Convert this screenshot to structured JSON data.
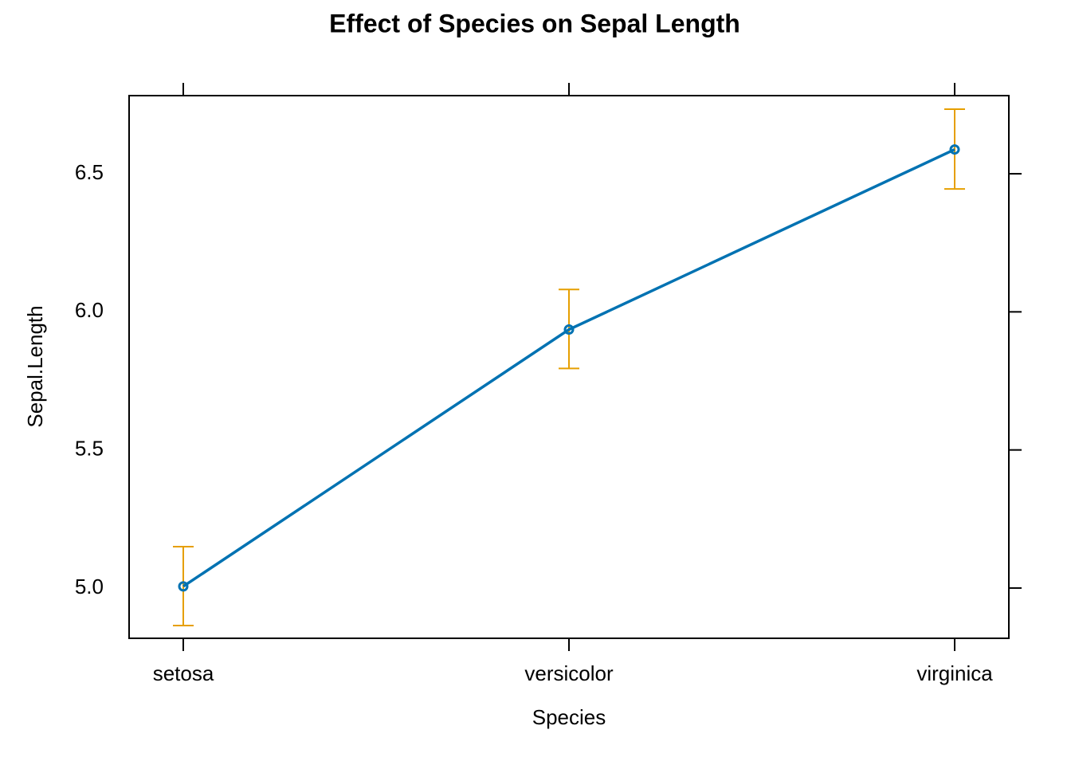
{
  "chart_data": {
    "type": "line",
    "title": "Effect of Species on Sepal Length",
    "x_label": "Species",
    "y_label": "Sepal.Length",
    "categories": [
      "setosa",
      "versicolor",
      "virginica"
    ],
    "series": [
      {
        "color": "#0072b2",
        "values": [
          5.006,
          5.936,
          6.588
        ],
        "lower": [
          4.864,
          5.795,
          6.445
        ],
        "upper": [
          5.15,
          6.081,
          6.734
        ],
        "error_color": "#e69f00"
      }
    ],
    "ylim": [
      4.818,
      6.783
    ],
    "yticks": [
      {
        "value": 5,
        "label": "5.0"
      },
      5.5,
      {
        "value": 6,
        "label": "6.0"
      },
      6.5
    ]
  }
}
